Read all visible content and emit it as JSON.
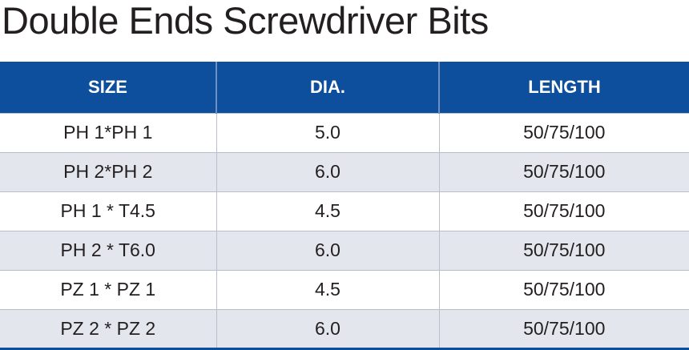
{
  "title": "Double Ends Screwdriver Bits",
  "table": {
    "headers": [
      "SIZE",
      "DIA.",
      "LENGTH"
    ],
    "rows": [
      [
        "PH 1*PH 1",
        "5.0",
        "50/75/100"
      ],
      [
        "PH 2*PH 2",
        "6.0",
        "50/75/100"
      ],
      [
        "PH 1 * T4.5",
        "4.5",
        "50/75/100"
      ],
      [
        "PH 2 * T6.0",
        "6.0",
        "50/75/100"
      ],
      [
        "PZ 1 * PZ 1",
        "4.5",
        "50/75/100"
      ],
      [
        "PZ 2 * PZ 2",
        "6.0",
        "50/75/100"
      ]
    ]
  },
  "colors": {
    "header_bg": "#0d4f9c",
    "stripe_bg": "#e3e6ec",
    "text": "#231f20"
  }
}
